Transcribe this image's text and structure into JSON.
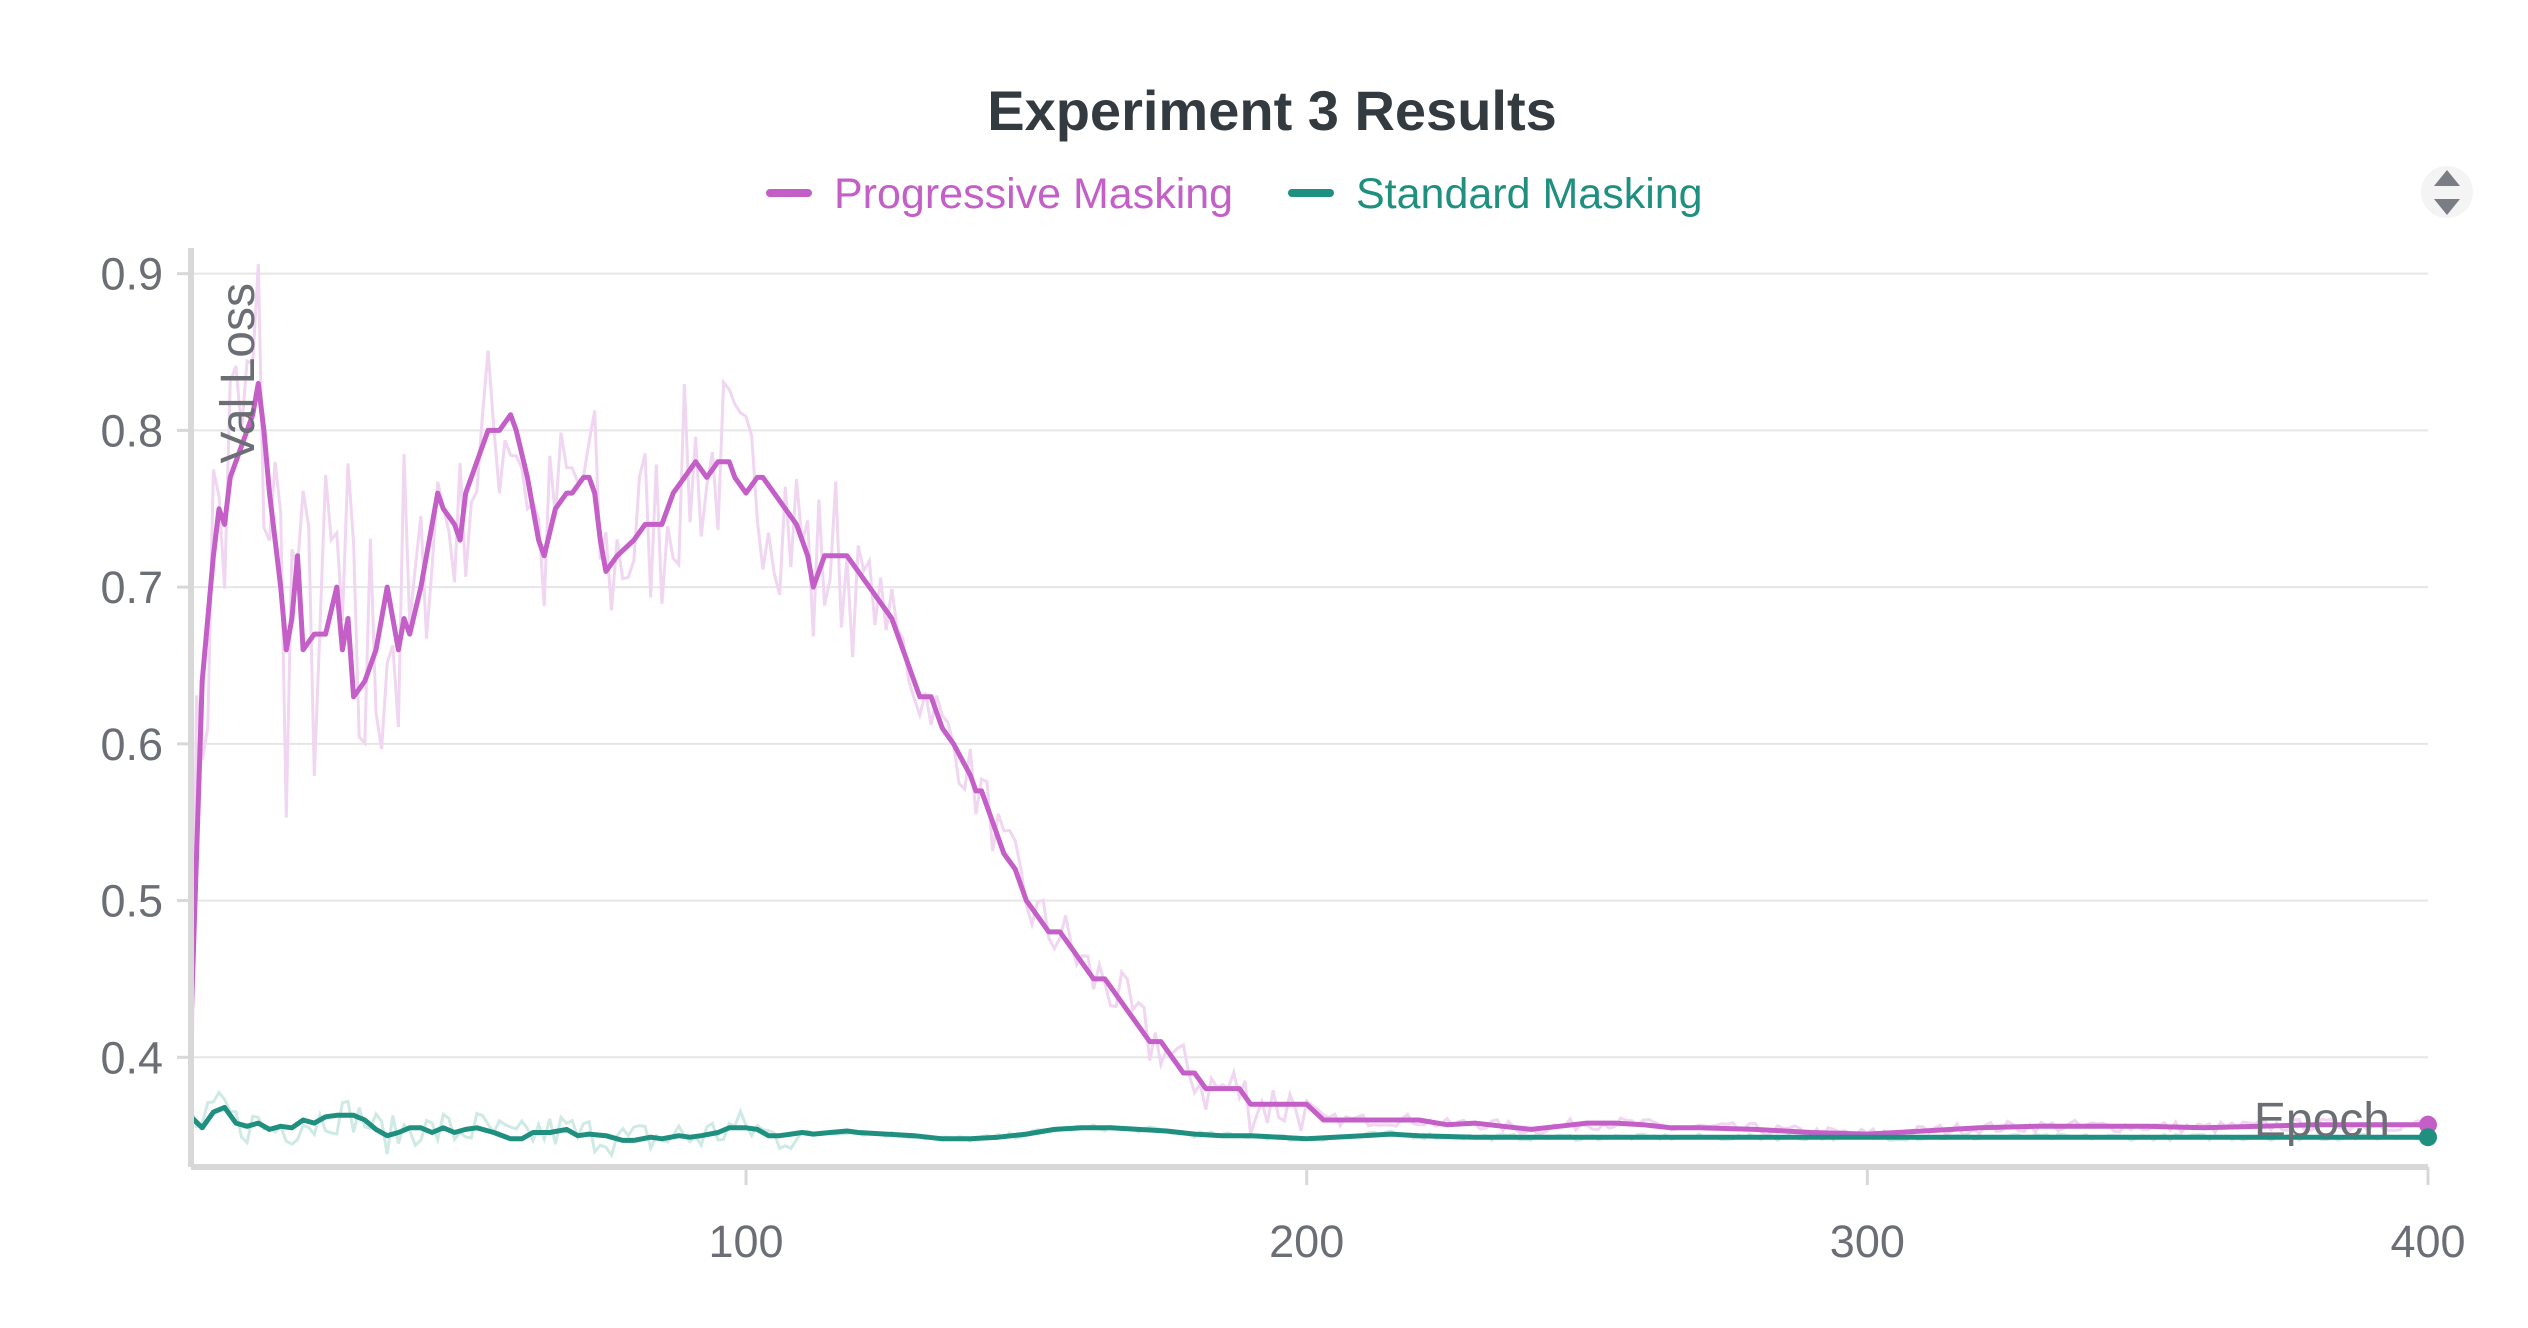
{
  "colors": {
    "progressive": "#c45fc8",
    "progressive_raw": "#f0d6f1",
    "standard": "#1f8f80",
    "standard_raw": "#cfeae5",
    "grid": "#e6e6e6",
    "axis": "#d8d8d8",
    "text": "#6b6f75",
    "title": "#333a40"
  },
  "controls": {
    "scroll_icon": "up-down-arrows-icon"
  },
  "chart_data": {
    "type": "line",
    "title": "Experiment 3 Results",
    "xlabel": "Epoch",
    "ylabel": "Val Loss",
    "xlim": [
      1,
      400
    ],
    "ylim": [
      0.33,
      0.91
    ],
    "xticks": [
      100,
      200,
      300,
      400
    ],
    "yticks": [
      0.4,
      0.5,
      0.6,
      0.7,
      0.8,
      0.9
    ],
    "grid": true,
    "legend": "top-center",
    "series": [
      {
        "name": "Progressive Masking",
        "smoothed": true,
        "points": [
          [
            1,
            0.42
          ],
          [
            3,
            0.64
          ],
          [
            5,
            0.72
          ],
          [
            6,
            0.75
          ],
          [
            7,
            0.74
          ],
          [
            8,
            0.77
          ],
          [
            10,
            0.79
          ],
          [
            12,
            0.81
          ],
          [
            13,
            0.83
          ],
          [
            14,
            0.8
          ],
          [
            15,
            0.76
          ],
          [
            16,
            0.73
          ],
          [
            17,
            0.7
          ],
          [
            18,
            0.66
          ],
          [
            19,
            0.68
          ],
          [
            20,
            0.72
          ],
          [
            21,
            0.66
          ],
          [
            23,
            0.67
          ],
          [
            25,
            0.67
          ],
          [
            27,
            0.7
          ],
          [
            28,
            0.66
          ],
          [
            29,
            0.68
          ],
          [
            30,
            0.63
          ],
          [
            32,
            0.64
          ],
          [
            34,
            0.66
          ],
          [
            36,
            0.7
          ],
          [
            37,
            0.68
          ],
          [
            38,
            0.66
          ],
          [
            39,
            0.68
          ],
          [
            40,
            0.67
          ],
          [
            42,
            0.7
          ],
          [
            44,
            0.74
          ],
          [
            45,
            0.76
          ],
          [
            46,
            0.75
          ],
          [
            48,
            0.74
          ],
          [
            49,
            0.73
          ],
          [
            50,
            0.76
          ],
          [
            52,
            0.78
          ],
          [
            54,
            0.8
          ],
          [
            56,
            0.8
          ],
          [
            58,
            0.81
          ],
          [
            59,
            0.8
          ],
          [
            61,
            0.77
          ],
          [
            63,
            0.73
          ],
          [
            64,
            0.72
          ],
          [
            66,
            0.75
          ],
          [
            68,
            0.76
          ],
          [
            69,
            0.76
          ],
          [
            71,
            0.77
          ],
          [
            72,
            0.77
          ],
          [
            73,
            0.76
          ],
          [
            74,
            0.73
          ],
          [
            75,
            0.71
          ],
          [
            77,
            0.72
          ],
          [
            80,
            0.73
          ],
          [
            82,
            0.74
          ],
          [
            84,
            0.74
          ],
          [
            85,
            0.74
          ],
          [
            87,
            0.76
          ],
          [
            89,
            0.77
          ],
          [
            91,
            0.78
          ],
          [
            93,
            0.77
          ],
          [
            95,
            0.78
          ],
          [
            97,
            0.78
          ],
          [
            98,
            0.77
          ],
          [
            100,
            0.76
          ],
          [
            102,
            0.77
          ],
          [
            103,
            0.77
          ],
          [
            105,
            0.76
          ],
          [
            107,
            0.75
          ],
          [
            109,
            0.74
          ],
          [
            111,
            0.72
          ],
          [
            112,
            0.7
          ],
          [
            113,
            0.71
          ],
          [
            114,
            0.72
          ],
          [
            116,
            0.72
          ],
          [
            118,
            0.72
          ],
          [
            120,
            0.71
          ],
          [
            122,
            0.7
          ],
          [
            124,
            0.69
          ],
          [
            126,
            0.68
          ],
          [
            128,
            0.66
          ],
          [
            130,
            0.64
          ],
          [
            131,
            0.63
          ],
          [
            133,
            0.63
          ],
          [
            135,
            0.61
          ],
          [
            137,
            0.6
          ],
          [
            140,
            0.58
          ],
          [
            141,
            0.57
          ],
          [
            142,
            0.57
          ],
          [
            144,
            0.55
          ],
          [
            146,
            0.53
          ],
          [
            148,
            0.52
          ],
          [
            150,
            0.5
          ],
          [
            152,
            0.49
          ],
          [
            154,
            0.48
          ],
          [
            156,
            0.48
          ],
          [
            158,
            0.47
          ],
          [
            160,
            0.46
          ],
          [
            162,
            0.45
          ],
          [
            164,
            0.45
          ],
          [
            166,
            0.44
          ],
          [
            168,
            0.43
          ],
          [
            170,
            0.42
          ],
          [
            172,
            0.41
          ],
          [
            174,
            0.41
          ],
          [
            176,
            0.4
          ],
          [
            178,
            0.39
          ],
          [
            180,
            0.39
          ],
          [
            182,
            0.38
          ],
          [
            184,
            0.38
          ],
          [
            186,
            0.38
          ],
          [
            188,
            0.38
          ],
          [
            190,
            0.37
          ],
          [
            192,
            0.37
          ],
          [
            195,
            0.37
          ],
          [
            198,
            0.37
          ],
          [
            200,
            0.37
          ],
          [
            203,
            0.36
          ],
          [
            206,
            0.36
          ],
          [
            210,
            0.36
          ],
          [
            215,
            0.36
          ],
          [
            220,
            0.36
          ],
          [
            225,
            0.357
          ],
          [
            230,
            0.358
          ],
          [
            235,
            0.356
          ],
          [
            240,
            0.354
          ],
          [
            245,
            0.356
          ],
          [
            250,
            0.358
          ],
          [
            255,
            0.358
          ],
          [
            260,
            0.357
          ],
          [
            265,
            0.355
          ],
          [
            270,
            0.355
          ],
          [
            280,
            0.354
          ],
          [
            290,
            0.352
          ],
          [
            300,
            0.351
          ],
          [
            310,
            0.353
          ],
          [
            320,
            0.355
          ],
          [
            330,
            0.356
          ],
          [
            340,
            0.356
          ],
          [
            350,
            0.356
          ],
          [
            360,
            0.355
          ],
          [
            370,
            0.356
          ],
          [
            380,
            0.357
          ],
          [
            390,
            0.357
          ],
          [
            400,
            0.357
          ]
        ]
      },
      {
        "name": "Standard Masking",
        "smoothed": true,
        "points": [
          [
            1,
            0.362
          ],
          [
            3,
            0.355
          ],
          [
            5,
            0.365
          ],
          [
            7,
            0.368
          ],
          [
            9,
            0.358
          ],
          [
            11,
            0.356
          ],
          [
            13,
            0.358
          ],
          [
            15,
            0.354
          ],
          [
            17,
            0.356
          ],
          [
            19,
            0.355
          ],
          [
            21,
            0.36
          ],
          [
            23,
            0.358
          ],
          [
            25,
            0.362
          ],
          [
            27,
            0.363
          ],
          [
            30,
            0.363
          ],
          [
            32,
            0.36
          ],
          [
            34,
            0.354
          ],
          [
            36,
            0.35
          ],
          [
            38,
            0.352
          ],
          [
            40,
            0.355
          ],
          [
            42,
            0.355
          ],
          [
            44,
            0.352
          ],
          [
            46,
            0.355
          ],
          [
            48,
            0.352
          ],
          [
            50,
            0.354
          ],
          [
            52,
            0.355
          ],
          [
            55,
            0.352
          ],
          [
            58,
            0.348
          ],
          [
            60,
            0.348
          ],
          [
            62,
            0.352
          ],
          [
            65,
            0.352
          ],
          [
            68,
            0.354
          ],
          [
            70,
            0.35
          ],
          [
            72,
            0.351
          ],
          [
            75,
            0.35
          ],
          [
            78,
            0.347
          ],
          [
            80,
            0.347
          ],
          [
            83,
            0.349
          ],
          [
            85,
            0.348
          ],
          [
            88,
            0.35
          ],
          [
            90,
            0.349
          ],
          [
            92,
            0.35
          ],
          [
            95,
            0.352
          ],
          [
            97,
            0.355
          ],
          [
            100,
            0.355
          ],
          [
            102,
            0.354
          ],
          [
            104,
            0.35
          ],
          [
            106,
            0.35
          ],
          [
            108,
            0.351
          ],
          [
            110,
            0.352
          ],
          [
            112,
            0.351
          ],
          [
            115,
            0.352
          ],
          [
            118,
            0.353
          ],
          [
            120,
            0.352
          ],
          [
            125,
            0.351
          ],
          [
            130,
            0.35
          ],
          [
            135,
            0.348
          ],
          [
            140,
            0.348
          ],
          [
            145,
            0.349
          ],
          [
            150,
            0.351
          ],
          [
            155,
            0.354
          ],
          [
            160,
            0.355
          ],
          [
            165,
            0.355
          ],
          [
            170,
            0.354
          ],
          [
            175,
            0.353
          ],
          [
            180,
            0.351
          ],
          [
            185,
            0.35
          ],
          [
            190,
            0.35
          ],
          [
            195,
            0.349
          ],
          [
            200,
            0.348
          ],
          [
            205,
            0.349
          ],
          [
            210,
            0.35
          ],
          [
            215,
            0.351
          ],
          [
            220,
            0.35
          ],
          [
            230,
            0.349
          ],
          [
            240,
            0.349
          ],
          [
            250,
            0.349
          ],
          [
            260,
            0.349
          ],
          [
            270,
            0.349
          ],
          [
            280,
            0.349
          ],
          [
            290,
            0.349
          ],
          [
            300,
            0.349
          ],
          [
            320,
            0.349
          ],
          [
            340,
            0.349
          ],
          [
            360,
            0.349
          ],
          [
            380,
            0.349
          ],
          [
            400,
            0.349
          ]
        ]
      }
    ]
  }
}
